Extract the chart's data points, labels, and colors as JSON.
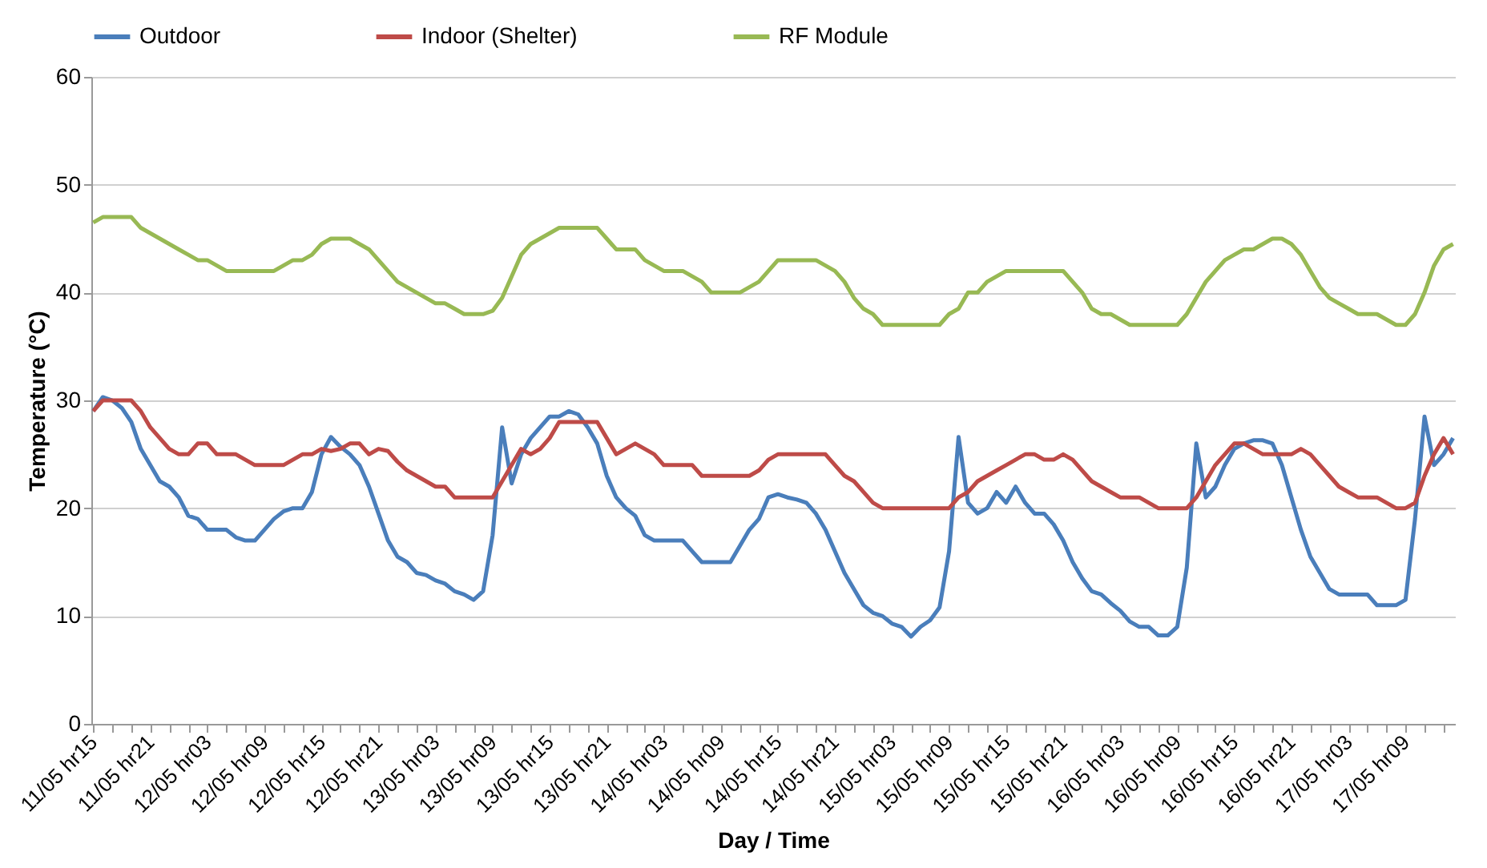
{
  "chart_data": {
    "type": "line",
    "xlabel": "Day / Time",
    "ylabel": "Temperature (°C)",
    "categories": [
      "11/05 hr15",
      null,
      null,
      null,
      null,
      null,
      "11/05 hr21",
      null,
      null,
      null,
      null,
      null,
      "12/05 hr03",
      null,
      null,
      null,
      null,
      null,
      "12/05 hr09",
      null,
      null,
      null,
      null,
      null,
      "12/05 hr15",
      null,
      null,
      null,
      null,
      null,
      "12/05 hr21",
      null,
      null,
      null,
      null,
      null,
      "13/05 hr03",
      null,
      null,
      null,
      null,
      null,
      "13/05 hr09",
      null,
      null,
      null,
      null,
      null,
      "13/05 hr15",
      null,
      null,
      null,
      null,
      null,
      "13/05 hr21",
      null,
      null,
      null,
      null,
      null,
      "14/05 hr03",
      null,
      null,
      null,
      null,
      null,
      "14/05 hr09",
      null,
      null,
      null,
      null,
      null,
      "14/05 hr15",
      null,
      null,
      null,
      null,
      null,
      "14/05 hr21",
      null,
      null,
      null,
      null,
      null,
      "15/05 hr03",
      null,
      null,
      null,
      null,
      null,
      "15/05 hr09",
      null,
      null,
      null,
      null,
      null,
      "15/05 hr15",
      null,
      null,
      null,
      null,
      null,
      "15/05 hr21",
      null,
      null,
      null,
      null,
      null,
      "16/05 hr03",
      null,
      null,
      null,
      null,
      null,
      "16/05 hr09",
      null,
      null,
      null,
      null,
      null,
      "16/05 hr15",
      null,
      null,
      null,
      null,
      null,
      "16/05 hr21",
      null,
      null,
      null,
      null,
      null,
      "17/05 hr03",
      null,
      null,
      null,
      null,
      null,
      "17/05 hr09",
      null,
      null,
      null,
      null,
      null
    ],
    "series": [
      {
        "name": "Outdoor",
        "color": "#4a7ebb",
        "values": [
          29,
          30.3,
          30,
          29.3,
          28,
          25.5,
          24,
          22.5,
          22,
          21,
          19.3,
          19,
          18,
          18,
          18,
          17.3,
          17,
          17,
          18,
          19,
          19.7,
          20,
          20,
          21.5,
          25,
          26.6,
          25.7,
          25,
          24,
          22,
          19.5,
          17,
          15.5,
          15,
          14,
          13.8,
          13.3,
          13,
          12.3,
          12,
          11.5,
          12.3,
          17.5,
          27.5,
          22.3,
          25,
          26.5,
          27.5,
          28.5,
          28.5,
          29,
          28.7,
          27.5,
          26,
          23,
          21,
          20,
          19.3,
          17.5,
          17,
          17,
          17,
          17,
          16,
          15,
          15,
          15,
          15,
          16.5,
          18,
          19,
          21,
          21.3,
          21,
          20.8,
          20.5,
          19.5,
          18,
          16,
          14,
          12.5,
          11,
          10.3,
          10,
          9.3,
          9,
          8.1,
          9,
          9.6,
          10.8,
          16,
          26.6,
          20.5,
          19.5,
          20,
          21.5,
          20.5,
          22,
          20.5,
          19.5,
          19.5,
          18.5,
          17,
          15,
          13.5,
          12.3,
          12,
          11.2,
          10.5,
          9.5,
          9,
          9,
          8.2,
          8.2,
          9,
          14.5,
          26,
          21,
          22,
          24,
          25.5,
          26,
          26.3,
          26.3,
          26,
          24,
          21,
          18,
          15.5,
          14,
          12.5,
          12,
          12,
          12,
          12,
          11,
          11,
          11,
          11.5,
          19,
          28.5,
          24,
          25,
          26.5
        ]
      },
      {
        "name": "Indoor (Shelter)",
        "color": "#be4b48",
        "values": [
          29,
          30,
          30,
          30,
          30,
          29,
          27.5,
          26.5,
          25.5,
          25,
          25,
          26,
          26,
          25,
          25,
          25,
          24.5,
          24,
          24,
          24,
          24,
          24.5,
          25,
          25,
          25.5,
          25.3,
          25.5,
          26,
          26,
          25,
          25.5,
          25.3,
          24.3,
          23.5,
          23,
          22.5,
          22,
          22,
          21,
          21,
          21,
          21,
          21,
          22.5,
          24,
          25.5,
          25,
          25.5,
          26.5,
          28,
          28,
          28,
          28,
          28,
          26.5,
          25,
          25.5,
          26,
          25.5,
          25,
          24,
          24,
          24,
          24,
          23,
          23,
          23,
          23,
          23,
          23,
          23.5,
          24.5,
          25,
          25,
          25,
          25,
          25,
          25,
          24,
          23,
          22.5,
          21.5,
          20.5,
          20,
          20,
          20,
          20,
          20,
          20,
          20,
          20,
          21,
          21.5,
          22.5,
          23,
          23.5,
          24,
          24.5,
          25,
          25,
          24.5,
          24.5,
          25,
          24.5,
          23.5,
          22.5,
          22,
          21.5,
          21,
          21,
          21,
          20.5,
          20,
          20,
          20,
          20,
          21,
          22.5,
          24,
          25,
          26,
          26,
          25.5,
          25,
          25,
          25,
          25,
          25.5,
          25,
          24,
          23,
          22,
          21.5,
          21,
          21,
          21,
          20.5,
          20,
          20,
          20.5,
          23,
          25,
          26.5,
          25
        ]
      },
      {
        "name": "RF Module",
        "color": "#98b954",
        "values": [
          46.5,
          47,
          47,
          47,
          47,
          46,
          45.5,
          45,
          44.5,
          44,
          43.5,
          43,
          43,
          42.5,
          42,
          42,
          42,
          42,
          42,
          42,
          42.5,
          43,
          43,
          43.5,
          44.5,
          45,
          45,
          45,
          44.5,
          44,
          43,
          42,
          41,
          40.5,
          40,
          39.5,
          39,
          39,
          38.5,
          38,
          38,
          38,
          38.3,
          39.5,
          41.5,
          43.5,
          44.5,
          45,
          45.5,
          46,
          46,
          46,
          46,
          46,
          45,
          44,
          44,
          44,
          43,
          42.5,
          42,
          42,
          42,
          41.5,
          41,
          40,
          40,
          40,
          40,
          40.5,
          41,
          42,
          43,
          43,
          43,
          43,
          43,
          42.5,
          42,
          41,
          39.5,
          38.5,
          38,
          37,
          37,
          37,
          37,
          37,
          37,
          37,
          38,
          38.5,
          40,
          40,
          41,
          41.5,
          42,
          42,
          42,
          42,
          42,
          42,
          42,
          41,
          40,
          38.5,
          38,
          38,
          37.5,
          37,
          37,
          37,
          37,
          37,
          37,
          38,
          39.5,
          41,
          42,
          43,
          43.5,
          44,
          44,
          44.5,
          45,
          45,
          44.5,
          43.5,
          42,
          40.5,
          39.5,
          39,
          38.5,
          38,
          38,
          38,
          37.5,
          37,
          37,
          38,
          40,
          42.5,
          44,
          44.5
        ]
      }
    ],
    "ylim": [
      0,
      60
    ],
    "yticks": [
      0,
      10,
      20,
      30,
      40,
      50,
      60
    ],
    "grid": "y",
    "legend": "top",
    "marker": "none",
    "line_style": "solid"
  }
}
